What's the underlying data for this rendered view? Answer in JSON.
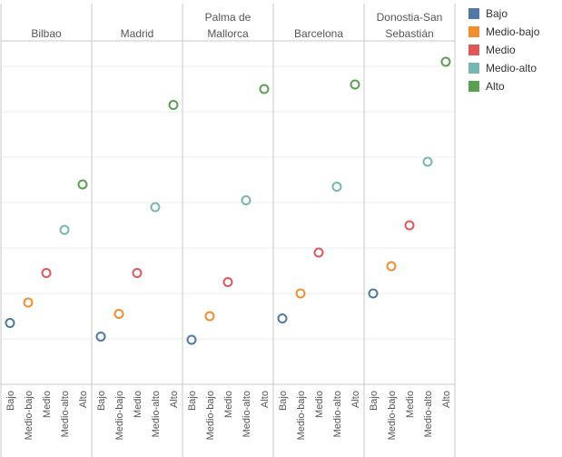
{
  "colors": {
    "Bajo": "#4e79a7",
    "Medio-bajo": "#f28e2b",
    "Medio": "#e15759",
    "Medio-alto": "#76b7b2",
    "Alto": "#59a14f"
  },
  "legend": {
    "items": [
      {
        "label": "Bajo",
        "color": "#4e79a7"
      },
      {
        "label": "Medio-bajo",
        "color": "#f28e2b"
      },
      {
        "label": "Medio",
        "color": "#e15759"
      },
      {
        "label": "Medio-alto",
        "color": "#76b7b2"
      },
      {
        "label": "Alto",
        "color": "#59a14f"
      }
    ]
  },
  "chart_data": {
    "type": "scatter",
    "title": "",
    "xlabel": "",
    "ylabel": "",
    "grid": true,
    "legend_placement": "right",
    "ylim": [
      0,
      8
    ],
    "categories": [
      "Bajo",
      "Medio-bajo",
      "Medio",
      "Medio-alto",
      "Alto"
    ],
    "panels": [
      {
        "name": "Bilbao",
        "values": [
          1.35,
          1.8,
          2.45,
          3.4,
          4.4
        ]
      },
      {
        "name": "Madrid",
        "values": [
          1.05,
          1.55,
          2.45,
          3.9,
          6.15
        ]
      },
      {
        "name": "Palma de Mallorca",
        "values": [
          0.98,
          1.5,
          2.25,
          4.05,
          6.5
        ]
      },
      {
        "name": "Barcelona",
        "values": [
          1.45,
          2.0,
          2.9,
          4.35,
          6.6
        ]
      },
      {
        "name": "Donostia-San Sebastián",
        "values": [
          2.0,
          2.6,
          3.5,
          4.9,
          7.1
        ]
      }
    ]
  }
}
